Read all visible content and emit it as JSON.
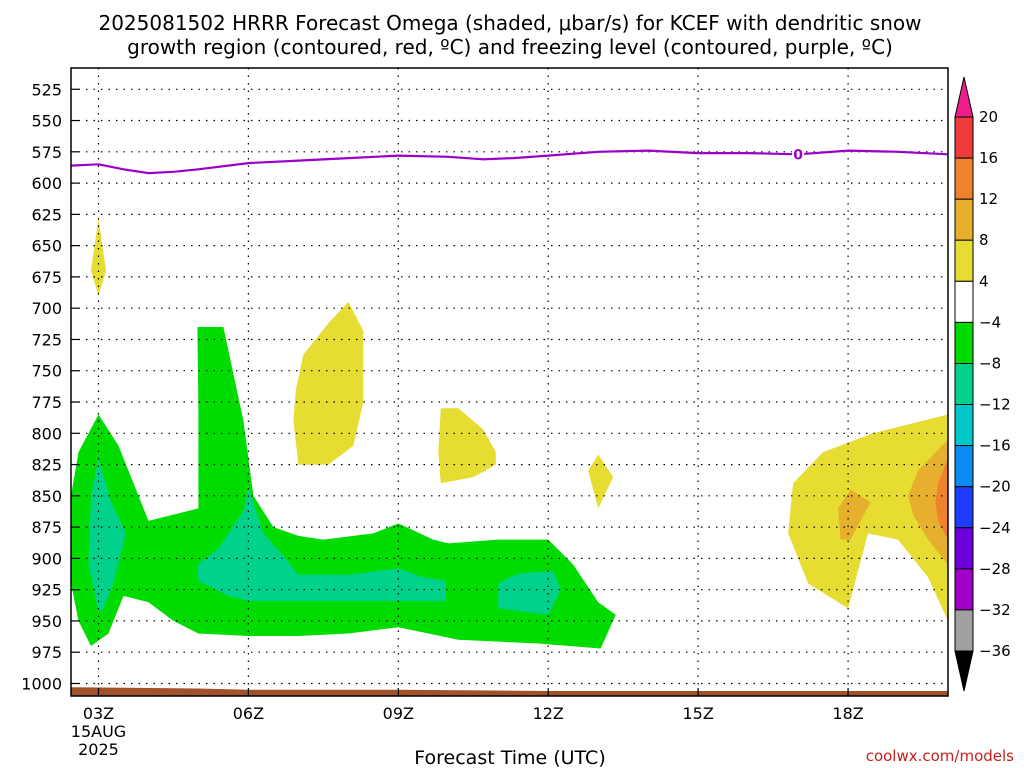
{
  "chart_data": {
    "type": "heatmap",
    "title_line1": "2025081502 HRRR Forecast Omega (shaded, μbar/s) for KCEF with dendritic snow",
    "title_line2": "growth region (contoured, red, ºC) and freezing level (contoured, purple, ºC)",
    "xlabel": "Forecast Time (UTC)",
    "x_ticks": [
      {
        "hour": 3,
        "label": "03Z",
        "sub1": "15AUG",
        "sub2": "2025"
      },
      {
        "hour": 6,
        "label": "06Z"
      },
      {
        "hour": 9,
        "label": "09Z"
      },
      {
        "hour": 12,
        "label": "12Z"
      },
      {
        "hour": 15,
        "label": "15Z"
      },
      {
        "hour": 18,
        "label": "18Z"
      }
    ],
    "xlim_hours": [
      2.45,
      20.0
    ],
    "y_ticks": [
      525,
      550,
      575,
      600,
      625,
      650,
      675,
      700,
      725,
      750,
      775,
      800,
      825,
      850,
      875,
      900,
      925,
      950,
      975,
      1000
    ],
    "ylim_hpa": [
      508,
      1010
    ],
    "grid": true,
    "colorbar": {
      "labels": [
        "20",
        "16",
        "12",
        "8",
        "4",
        "−4",
        "−8",
        "−12",
        "−16",
        "−20",
        "−24",
        "−28",
        "−32",
        "−36"
      ],
      "bins": [
        {
          "lo": 16,
          "hi": 20,
          "color": "#f03c3c"
        },
        {
          "lo": 12,
          "hi": 16,
          "color": "#f0822d"
        },
        {
          "lo": 8,
          "hi": 12,
          "color": "#e6af2d"
        },
        {
          "lo": 4,
          "hi": 8,
          "color": "#e6dc32"
        },
        {
          "lo": -4,
          "hi": 4,
          "color": "#ffffff"
        },
        {
          "lo": -8,
          "hi": -4,
          "color": "#00dc00"
        },
        {
          "lo": -12,
          "hi": -8,
          "color": "#00d28c"
        },
        {
          "lo": -16,
          "hi": -12,
          "color": "#00c8c8"
        },
        {
          "lo": -20,
          "hi": -16,
          "color": "#0a8cf0"
        },
        {
          "lo": -24,
          "hi": -20,
          "color": "#1e3cff"
        },
        {
          "lo": -28,
          "hi": -24,
          "color": "#6e00dc"
        },
        {
          "lo": -32,
          "hi": -28,
          "color": "#a000c8"
        },
        {
          "lo": -36,
          "hi": -32,
          "color": "#a0a0a0"
        }
      ],
      "top_triangle_color": "#f01e8c",
      "bottom_triangle_color": "#000000"
    },
    "freezing_level": {
      "label": "0",
      "color": "#9b00c8",
      "label_at_hour": 17.0,
      "points": [
        [
          2.45,
          586
        ],
        [
          3.0,
          585
        ],
        [
          3.5,
          589
        ],
        [
          4.0,
          592
        ],
        [
          4.5,
          591
        ],
        [
          5.0,
          589
        ],
        [
          6.0,
          584
        ],
        [
          7.0,
          582
        ],
        [
          8.0,
          580
        ],
        [
          9.0,
          578
        ],
        [
          10.0,
          579
        ],
        [
          10.7,
          581
        ],
        [
          11.3,
          580
        ],
        [
          12.0,
          578
        ],
        [
          13.0,
          575
        ],
        [
          14.0,
          574
        ],
        [
          15.0,
          576
        ],
        [
          16.0,
          576
        ],
        [
          17.0,
          577
        ],
        [
          18.0,
          574
        ],
        [
          19.0,
          575
        ],
        [
          20.0,
          577
        ]
      ]
    },
    "surface": {
      "color": "#a0522d",
      "points": [
        [
          2.45,
          1003
        ],
        [
          5.0,
          1004
        ],
        [
          6.0,
          1005
        ],
        [
          9.0,
          1005
        ],
        [
          12.0,
          1006
        ],
        [
          20.0,
          1006
        ]
      ]
    },
    "omega_regions": [
      {
        "level": "4 to 8",
        "color": "#e6dc32",
        "points": [
          [
            3.0,
            628
          ],
          [
            2.85,
            670
          ],
          [
            3.0,
            690
          ],
          [
            3.15,
            670
          ]
        ]
      },
      {
        "level": "4 to 8",
        "color": "#e6dc32",
        "points": [
          [
            7.0,
            825
          ],
          [
            6.9,
            790
          ],
          [
            6.95,
            765
          ],
          [
            7.1,
            737
          ],
          [
            7.6,
            712
          ],
          [
            8.0,
            695
          ],
          [
            8.3,
            718
          ],
          [
            8.3,
            775
          ],
          [
            8.1,
            810
          ],
          [
            7.6,
            825
          ]
        ]
      },
      {
        "level": "4 to 8",
        "color": "#e6dc32",
        "points": [
          [
            9.85,
            840
          ],
          [
            9.8,
            815
          ],
          [
            9.85,
            780
          ],
          [
            10.2,
            780
          ],
          [
            10.7,
            797
          ],
          [
            10.95,
            815
          ],
          [
            10.95,
            825
          ],
          [
            10.5,
            835
          ]
        ]
      },
      {
        "level": "4 to 8",
        "color": "#e6dc32",
        "points": [
          [
            13.0,
            817
          ],
          [
            12.8,
            830
          ],
          [
            13.0,
            860
          ],
          [
            13.3,
            835
          ]
        ]
      },
      {
        "level": "4 to 8",
        "color": "#e6dc32",
        "points": [
          [
            18.0,
            940
          ],
          [
            17.2,
            920
          ],
          [
            16.8,
            880
          ],
          [
            16.9,
            840
          ],
          [
            17.5,
            815
          ],
          [
            18.5,
            800
          ],
          [
            19.5,
            790
          ],
          [
            20.0,
            785
          ],
          [
            20.0,
            950
          ],
          [
            19.6,
            915
          ],
          [
            19.0,
            885
          ],
          [
            18.4,
            880
          ]
        ]
      },
      {
        "level": "8 to 12",
        "color": "#e6af2d",
        "points": [
          [
            19.2,
            850
          ],
          [
            19.4,
            830
          ],
          [
            20.0,
            805
          ],
          [
            20.0,
            905
          ],
          [
            19.6,
            885
          ],
          [
            19.3,
            865
          ]
        ]
      },
      {
        "level": "8 to 12",
        "color": "#e6af2d",
        "points": [
          [
            17.85,
            885
          ],
          [
            17.8,
            860
          ],
          [
            18.05,
            845
          ],
          [
            18.45,
            855
          ],
          [
            18.05,
            885
          ]
        ]
      },
      {
        "level": "12 to 16",
        "color": "#f0822d",
        "points": [
          [
            19.75,
            855
          ],
          [
            19.8,
            840
          ],
          [
            20.0,
            820
          ],
          [
            20.0,
            885
          ],
          [
            19.8,
            870
          ]
        ]
      },
      {
        "level": "-8 to -4",
        "color": "#00dc00",
        "points": [
          [
            2.85,
            970
          ],
          [
            2.6,
            950
          ],
          [
            2.4,
            920
          ],
          [
            2.4,
            850
          ],
          [
            2.6,
            815
          ],
          [
            3.0,
            785
          ],
          [
            3.4,
            810
          ],
          [
            3.7,
            840
          ],
          [
            4.0,
            870
          ],
          [
            4.5,
            865
          ],
          [
            5.0,
            860
          ],
          [
            5.0,
            780
          ],
          [
            4.98,
            715
          ],
          [
            5.5,
            715
          ],
          [
            5.9,
            790
          ],
          [
            6.1,
            850
          ],
          [
            6.5,
            875
          ],
          [
            7.0,
            882
          ],
          [
            7.5,
            885
          ],
          [
            8.5,
            880
          ],
          [
            9.0,
            872
          ],
          [
            9.7,
            885
          ],
          [
            10.0,
            888
          ],
          [
            11.0,
            885
          ],
          [
            12.0,
            885
          ],
          [
            12.5,
            905
          ],
          [
            13.0,
            935
          ],
          [
            13.35,
            945
          ],
          [
            13.05,
            972
          ],
          [
            11.8,
            968
          ],
          [
            10.2,
            965
          ],
          [
            9.0,
            955
          ],
          [
            8.0,
            960
          ],
          [
            7.0,
            962
          ],
          [
            6.0,
            962
          ],
          [
            5.0,
            960
          ],
          [
            4.5,
            950
          ],
          [
            4.0,
            935
          ],
          [
            3.5,
            930
          ],
          [
            3.2,
            960
          ]
        ]
      },
      {
        "level": "-12 to -8",
        "color": "#00d28c",
        "points": [
          [
            3.0,
            943
          ],
          [
            2.8,
            905
          ],
          [
            2.85,
            850
          ],
          [
            3.0,
            820
          ],
          [
            3.25,
            855
          ],
          [
            3.55,
            880
          ],
          [
            3.3,
            920
          ],
          [
            3.1,
            940
          ]
        ]
      },
      {
        "level": "-12 to -8",
        "color": "#00d28c",
        "points": [
          [
            5.0,
            918
          ],
          [
            4.98,
            905
          ],
          [
            5.4,
            892
          ],
          [
            5.9,
            862
          ],
          [
            6.0,
            843
          ],
          [
            6.3,
            880
          ],
          [
            6.7,
            898
          ],
          [
            7.0,
            913
          ],
          [
            8.0,
            913
          ],
          [
            9.0,
            908
          ],
          [
            9.5,
            915
          ],
          [
            9.95,
            918
          ],
          [
            9.95,
            934
          ],
          [
            9.0,
            934
          ],
          [
            8.0,
            934
          ],
          [
            7.0,
            934
          ],
          [
            6.0,
            934
          ],
          [
            5.6,
            930
          ]
        ]
      },
      {
        "level": "-12 to -8",
        "color": "#00d28c",
        "points": [
          [
            11.0,
            920
          ],
          [
            11.4,
            912
          ],
          [
            12.1,
            910
          ],
          [
            12.25,
            925
          ],
          [
            12.0,
            945
          ],
          [
            11.0,
            940
          ]
        ]
      }
    ]
  },
  "credit": "coolwx.com/models"
}
